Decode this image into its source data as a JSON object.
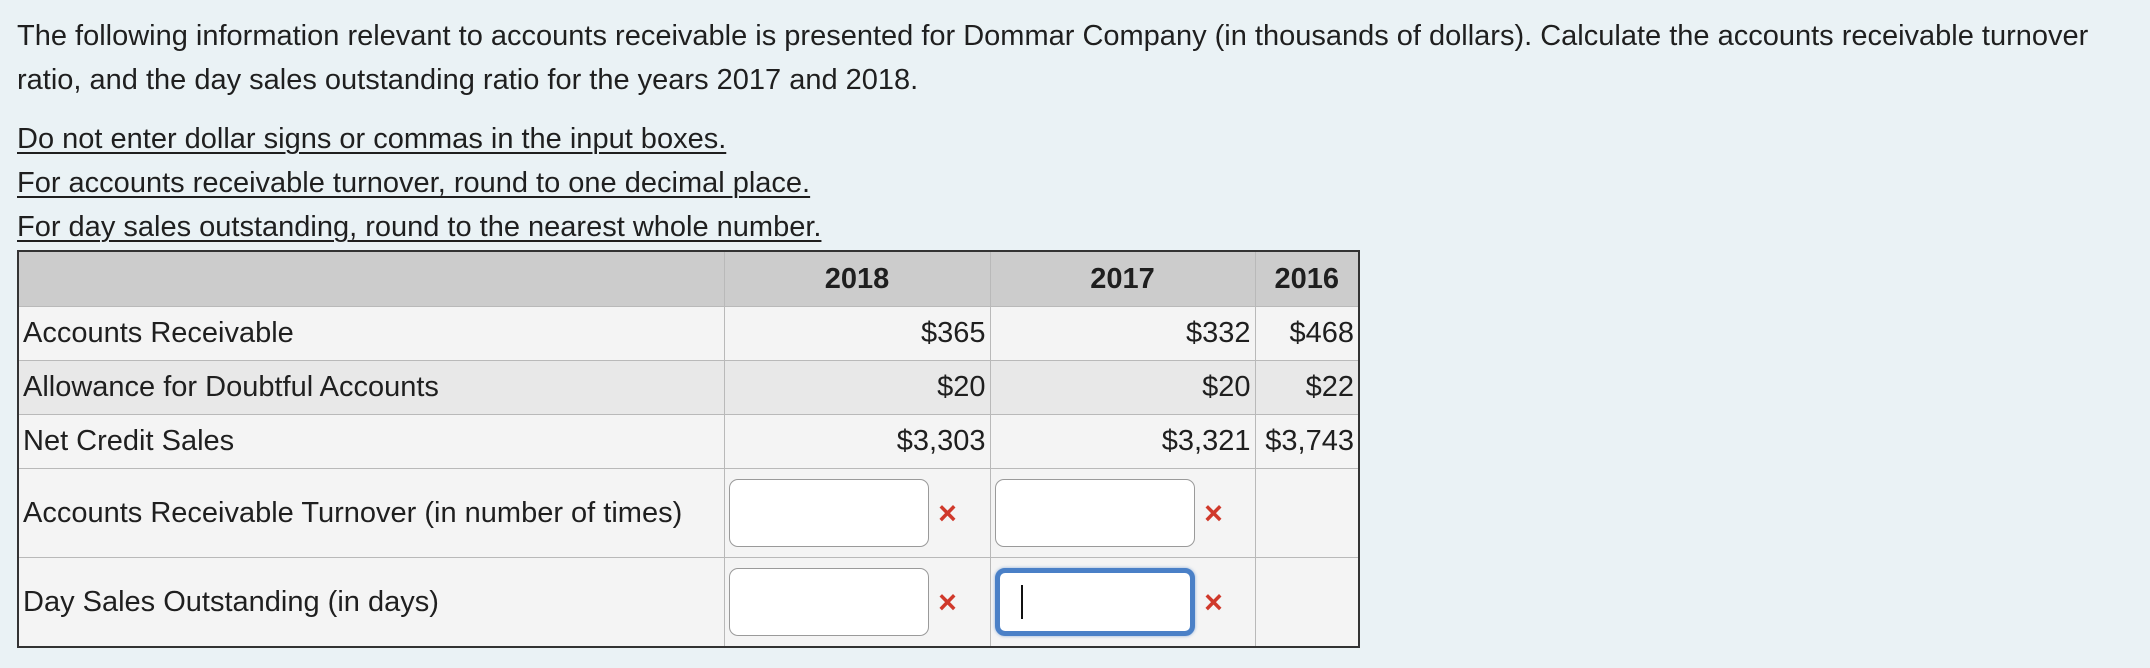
{
  "intro": "The following information relevant to accounts receivable is presented for Dommar Company (in thousands of dollars). Calculate the accounts receivable turnover ratio, and the day sales outstanding ratio for the years 2017 and 2018.",
  "rules": [
    "Do not enter dollar signs or commas in the input boxes.",
    "For accounts receivable turnover, round to one decimal place.",
    "For day sales outstanding, round to the nearest whole number."
  ],
  "table": {
    "headers": [
      "",
      "2018",
      "2017",
      "2016"
    ],
    "rows": [
      {
        "label": "Accounts Receivable",
        "values": [
          "$365",
          "$332",
          "$468"
        ]
      },
      {
        "label": "Allowance for Doubtful Accounts",
        "values": [
          "$20",
          "$20",
          "$22"
        ]
      },
      {
        "label": "Net Credit Sales",
        "values": [
          "$3,303",
          "$3,321",
          "$3,743"
        ]
      }
    ],
    "input_rows": [
      {
        "label": "Accounts Receivable Turnover (in number of times)",
        "inputs": [
          "",
          ""
        ]
      },
      {
        "label": "Day Sales Outstanding (in days)",
        "inputs": [
          "",
          ""
        ]
      }
    ],
    "incorrect_mark": "×"
  },
  "colors": {
    "background": "#eaf2f5",
    "header": "#cccccc",
    "focus": "#4a80c7",
    "error": "#d0392b"
  }
}
